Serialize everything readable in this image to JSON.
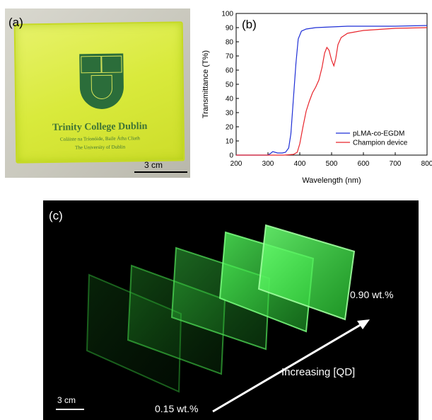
{
  "panel_a": {
    "label": "(a)",
    "logo_text": {
      "line1": "Trinity College Dublin",
      "line2": "Coláiste na Tríonóide, Baile Átha Cliath",
      "line3": "The University of Dublin"
    },
    "scale_label": "3 cm"
  },
  "panel_b": {
    "label": "(b)"
  },
  "panel_c": {
    "label": "(c)",
    "label_high": "0.90 wt.%",
    "label_low": "0.15 wt.%",
    "arrow_label": "Increasing [QD]",
    "scale_label": "3 cm"
  },
  "colors": {
    "series_blue": "#1f2fd6",
    "series_red": "#e8242b",
    "film_yellow": "#dbea3c",
    "glow_green": "#3cff4a"
  },
  "chart_data": {
    "type": "line",
    "title": "",
    "xlabel": "Wavelength (nm)",
    "ylabel": "Transmittance (T%)",
    "xlim": [
      200,
      800
    ],
    "ylim": [
      0,
      100
    ],
    "xticks": [
      200,
      300,
      400,
      500,
      600,
      700,
      800
    ],
    "yticks": [
      0,
      10,
      20,
      30,
      40,
      50,
      60,
      70,
      80,
      90,
      100
    ],
    "grid": false,
    "legend_position": "bottom-right",
    "series": [
      {
        "name": "pLMA-co-EGDM",
        "color": "#1f2fd6",
        "x": [
          200,
          300,
          310,
          315,
          330,
          345,
          355,
          365,
          372,
          380,
          388,
          395,
          405,
          420,
          450,
          500,
          550,
          600,
          700,
          800
        ],
        "y": [
          0,
          0,
          1.5,
          2.5,
          1.5,
          1.5,
          2,
          5,
          15,
          40,
          65,
          82,
          87.5,
          89,
          90,
          90.5,
          91,
          91,
          91,
          91.5
        ]
      },
      {
        "name": "Champion device",
        "color": "#e8242b",
        "x": [
          200,
          350,
          380,
          392,
          400,
          410,
          420,
          430,
          440,
          450,
          460,
          470,
          478,
          485,
          492,
          500,
          507,
          513,
          520,
          530,
          550,
          600,
          700,
          800
        ],
        "y": [
          0,
          0,
          0.5,
          2,
          8,
          20,
          31,
          38,
          44,
          48,
          53,
          62,
          72,
          76,
          74,
          67,
          63,
          68,
          78,
          83,
          86,
          88,
          89.5,
          90
        ]
      }
    ]
  }
}
